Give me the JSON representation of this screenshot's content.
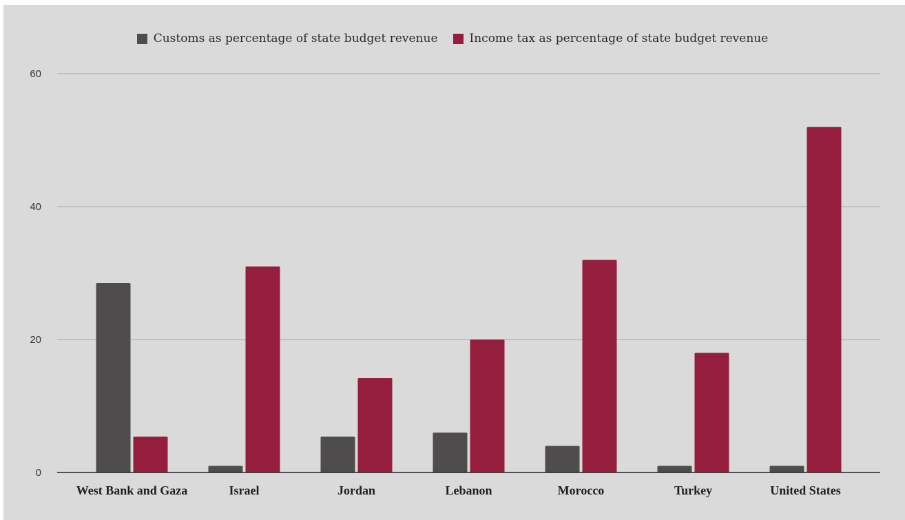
{
  "chart_data": {
    "type": "bar",
    "categories": [
      "West Bank and Gaza",
      "Israel",
      "Jordan",
      "Lebanon",
      "Morocco",
      "Turkey",
      "United States"
    ],
    "series": [
      {
        "name": "Customs as percentage of state budget revenue",
        "color": "#4f4c4d",
        "values": [
          28.5,
          1,
          5.4,
          6,
          4,
          1,
          1
        ]
      },
      {
        "name": "Income tax as percentage of state budget revenue",
        "color": "#951e3e",
        "values": [
          5.4,
          31,
          14.2,
          20,
          32,
          18,
          52
        ]
      }
    ],
    "y_ticks": [
      "0",
      "20",
      "40",
      "60"
    ],
    "ylim": [
      0,
      60
    ],
    "grid": true,
    "legend_position": "top-center",
    "title": "",
    "xlabel": "",
    "ylabel": ""
  }
}
